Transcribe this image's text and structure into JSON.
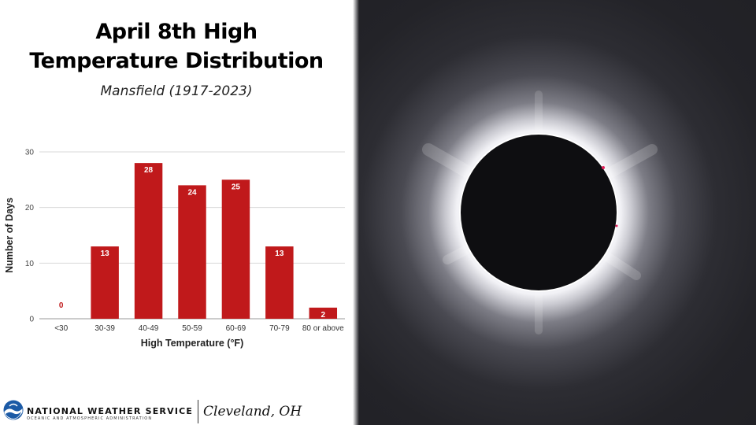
{
  "header": {
    "title_line1": "April 8th High",
    "title_line2": "Temperature Distribution",
    "subtitle": "Mansfield (1917-2023)"
  },
  "chart_data": {
    "type": "bar",
    "categories": [
      "<30",
      "30-39",
      "40-49",
      "50-59",
      "60-69",
      "70-79",
      "80 or above"
    ],
    "values": [
      0,
      13,
      28,
      24,
      25,
      13,
      2
    ],
    "title": "",
    "xlabel": "High Temperature (°F)",
    "ylabel": "Number of Days",
    "ylim": [
      0,
      30
    ],
    "yticks": [
      0,
      10,
      20,
      30
    ],
    "grid": true,
    "bar_color": "#c0191b",
    "zero_label_color": "#c0191b",
    "data_labels": true
  },
  "footer": {
    "agency": "NATIONAL WEATHER SERVICE",
    "agency_sub": "OCEANIC AND ATMOSPHERIC ADMINISTRATION",
    "office": "Cleveland, OH"
  },
  "colors": {
    "bar": "#c0191b",
    "grid": "#d9d9d9",
    "moon": "#0e0e11",
    "noaa_blue": "#1b5aa6"
  }
}
